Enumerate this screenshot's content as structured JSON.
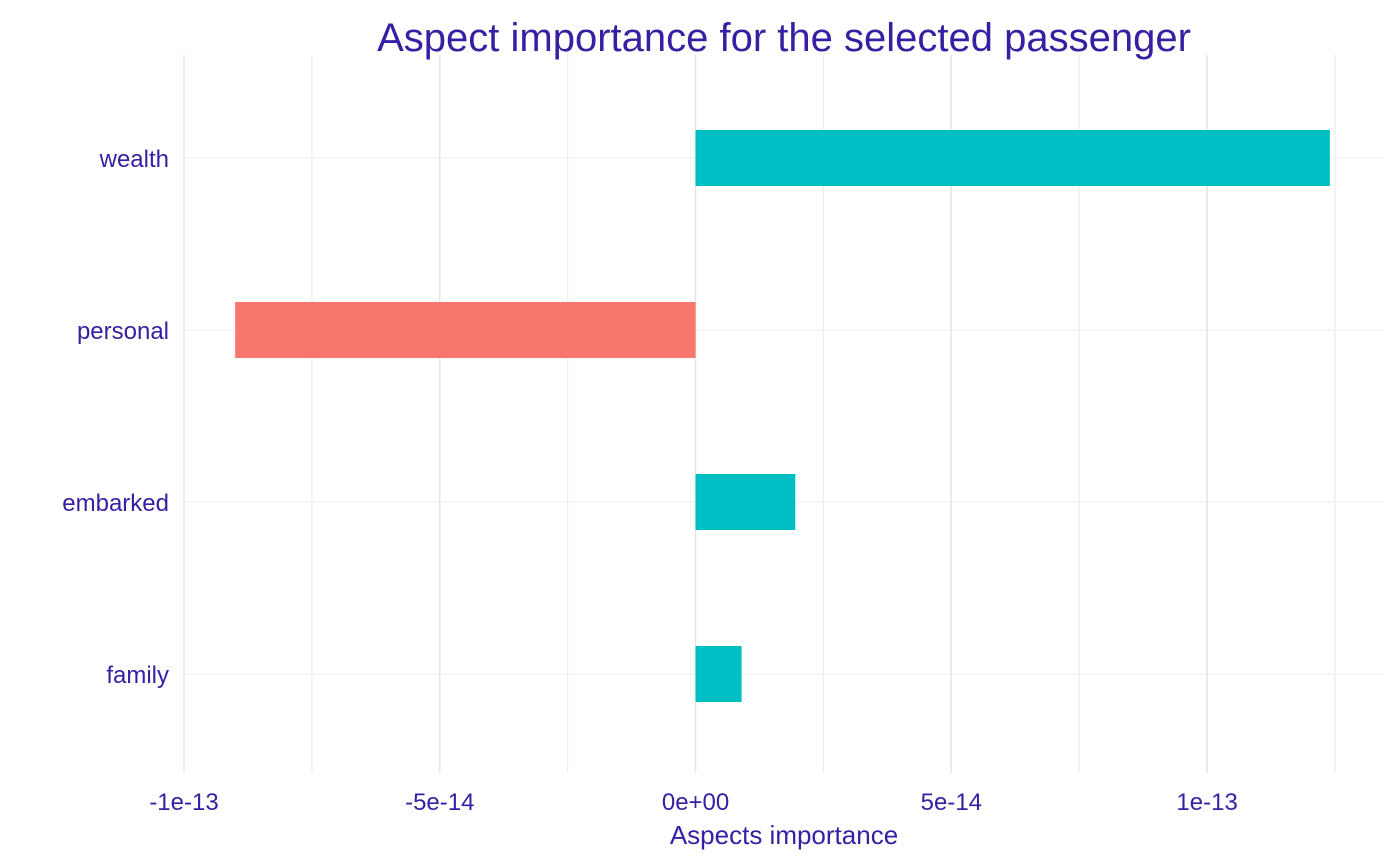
{
  "chart_data": {
    "type": "bar",
    "orientation": "horizontal",
    "title": "Aspect importance for the selected passenger",
    "xlabel": "Aspects importance",
    "ylabel": "",
    "categories": [
      "wealth",
      "personal",
      "embarked",
      "family"
    ],
    "values": [
      1.24e-13,
      -9e-14,
      1.95e-14,
      9e-15
    ],
    "xlim": [
      -1e-13,
      1.25e-13
    ],
    "x_ticks": [
      {
        "value": -1e-13,
        "label": "-1e-13"
      },
      {
        "value": -5e-14,
        "label": "-5e-14"
      },
      {
        "value": 0,
        "label": "0e+00"
      },
      {
        "value": 5e-14,
        "label": "5e-14"
      },
      {
        "value": 1e-13,
        "label": "1e-13"
      }
    ],
    "x_minor_ticks": [
      -7.5e-14,
      -2.5e-14,
      2.5e-14,
      7.5e-14,
      1.25e-13
    ],
    "grid": true,
    "colors": {
      "positive": "#00bfc4",
      "negative": "#f8766d",
      "text": "#371ea3",
      "grid": "#e5e5e5",
      "grid_minor": "#ededed"
    }
  }
}
